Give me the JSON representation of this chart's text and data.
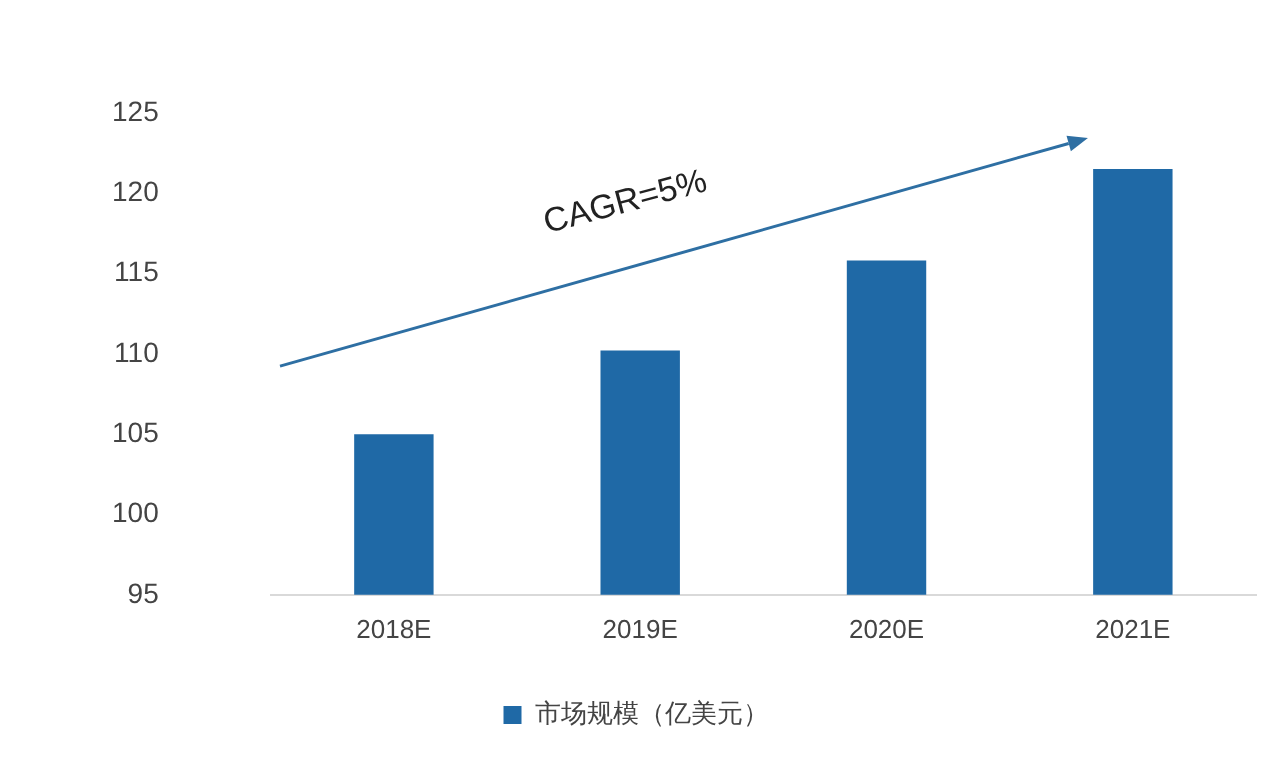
{
  "chart_data": {
    "type": "bar",
    "categories": [
      "2018E",
      "2019E",
      "2020E",
      "2021E"
    ],
    "series": [
      {
        "name": "市场规模（亿美元）",
        "color": "#1f69a6",
        "values": [
          105,
          110.2,
          115.8,
          121.5
        ]
      }
    ],
    "ylim": [
      95,
      125
    ],
    "yticks": [
      95,
      100,
      105,
      110,
      115,
      120,
      125
    ],
    "grid": false,
    "legend": "bottom",
    "annotations": [
      "CAGR=5%"
    ]
  }
}
